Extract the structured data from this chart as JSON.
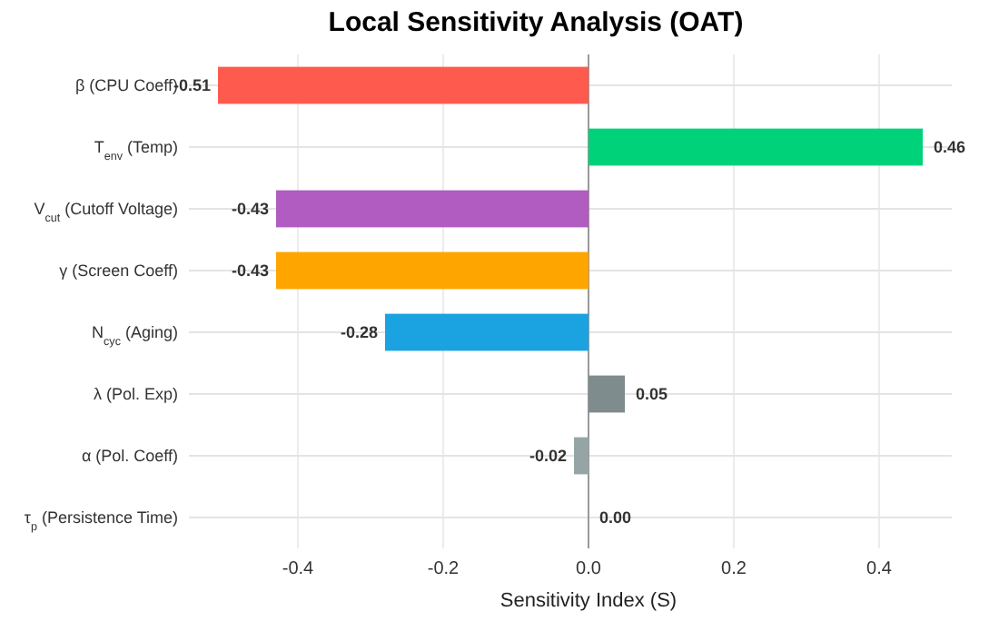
{
  "chart_data": {
    "type": "bar",
    "orientation": "horizontal",
    "title": "Local Sensitivity Analysis (OAT)",
    "xlabel": "Sensitivity Index (S)",
    "categories": [
      "β (CPU Coeff)",
      "T$_{env}$ (Temp)",
      "V$_{cut}$ (Cutoff Voltage)",
      "γ (Screen Coeff)",
      "N$_{cyc}$ (Aging)",
      "λ (Pol. Exp)",
      "α (Pol. Coeff)",
      "τ$_{p}$ (Persistence Time)"
    ],
    "values": [
      -0.51,
      0.46,
      -0.43,
      -0.43,
      -0.28,
      0.05,
      -0.02,
      0.0
    ],
    "colors": [
      "#ff5a4e",
      "#00d27a",
      "#b05cc0",
      "#ffa500",
      "#1aa3e0",
      "#7f8c8d",
      "#95a5a6",
      "#bdc3c7"
    ],
    "xlim": [
      -0.55,
      0.5
    ],
    "xticks": [
      {
        "value": -0.4,
        "label": "-0.4"
      },
      {
        "value": -0.2,
        "label": "-0.2"
      },
      {
        "value": 0,
        "label": "0.0"
      },
      {
        "value": 0.2,
        "label": "0.2"
      },
      {
        "value": 0.4,
        "label": "0.4"
      }
    ],
    "ref_lines": [
      {
        "axis": "x",
        "value": 0,
        "color": "#999999"
      }
    ],
    "value_labels": [
      "-0.51",
      "0.46",
      "-0.43",
      "-0.43",
      "-0.28",
      "0.05",
      "-0.02",
      "0.00"
    ],
    "grid": true
  }
}
